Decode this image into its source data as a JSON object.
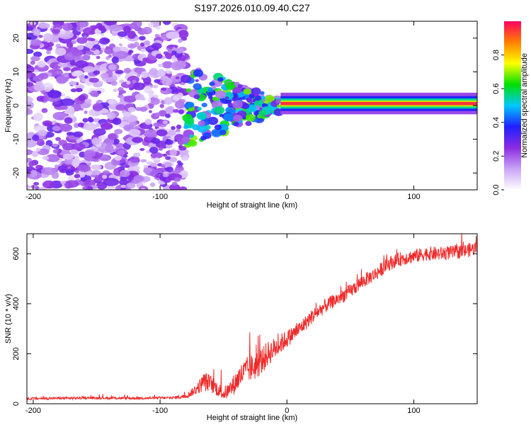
{
  "title": "S197.2026.010.09.40.C27",
  "chart_data": [
    {
      "type": "heatmap",
      "xlabel": "Height of straight line (km)",
      "ylabel": "Frequency (Hz)",
      "xlim": [
        -205,
        150
      ],
      "ylim": [
        -25,
        25
      ],
      "xticks": [
        -200,
        -100,
        0,
        100
      ],
      "yticks": [
        -20,
        -10,
        0,
        10,
        20
      ],
      "colorbar": {
        "label": "Normalized spectral amplitude",
        "range": [
          0.0,
          1.0
        ],
        "ticks": [
          0.0,
          0.2,
          0.4,
          0.6,
          0.8
        ],
        "tick_labels": [
          "0.0",
          "0.2",
          "0.4",
          "0.6",
          "0.8"
        ],
        "colors": [
          "#ffffff",
          "#c9a3f5",
          "#8a2be2",
          "#2020ff",
          "#00c8ff",
          "#00e000",
          "#ffff00",
          "#ff8000",
          "#ff0060"
        ]
      },
      "regions": [
        {
          "name": "noise",
          "x_range": [
            -205,
            -80
          ],
          "amplitude": 0.25
        },
        {
          "name": "transition",
          "x_range": [
            -80,
            -5
          ],
          "amplitude": 0.55
        },
        {
          "name": "signal-line",
          "x_range": [
            -5,
            150
          ],
          "freq_hz": 0.6,
          "amplitude": 0.95
        }
      ]
    },
    {
      "type": "line",
      "xlabel": "Height of straight line (km)",
      "ylabel": "SNR (10 * v/v)",
      "xlim": [
        -205,
        150
      ],
      "ylim": [
        0,
        680
      ],
      "xticks": [
        -200,
        -100,
        0,
        100
      ],
      "yticks": [
        0,
        200,
        400,
        600
      ],
      "series": [
        {
          "name": "SNR",
          "color": "#ee2a2a",
          "x": [
            -205,
            -180,
            -150,
            -120,
            -90,
            -80,
            -75,
            -70,
            -65,
            -60,
            -55,
            -50,
            -45,
            -40,
            -35,
            -30,
            -25,
            -20,
            -15,
            -10,
            -5,
            0,
            10,
            20,
            30,
            40,
            50,
            60,
            70,
            80,
            90,
            100,
            110,
            120,
            130,
            140,
            150
          ],
          "values": [
            20,
            22,
            23,
            22,
            24,
            30,
            45,
            65,
            90,
            80,
            60,
            40,
            55,
            90,
            120,
            140,
            150,
            170,
            200,
            220,
            240,
            260,
            300,
            350,
            390,
            420,
            450,
            490,
            520,
            560,
            580,
            590,
            600,
            600,
            605,
            610,
            625
          ],
          "noise": [
            5,
            5,
            5,
            5,
            5,
            10,
            15,
            25,
            40,
            35,
            30,
            25,
            35,
            45,
            50,
            55,
            55,
            55,
            50,
            45,
            40,
            35,
            30,
            30,
            28,
            28,
            28,
            28,
            28,
            28,
            28,
            28,
            28,
            28,
            28,
            28,
            28
          ]
        }
      ]
    }
  ]
}
